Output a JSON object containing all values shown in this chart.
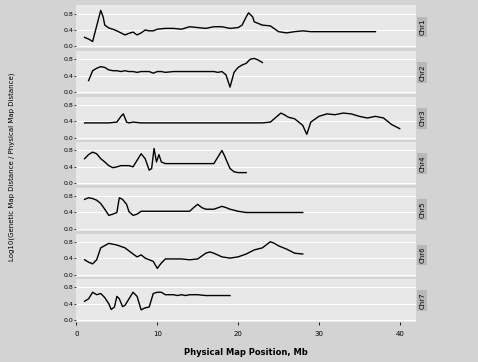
{
  "chromosomes": [
    "Chr1",
    "Chr2",
    "Chr3",
    "Chr4",
    "Chr5",
    "Chr6",
    "Chr7"
  ],
  "xlabel": "Physical Map Position, Mb",
  "ylabel": "Log10(Genetic Map Distance / Physical Map Distance)",
  "xlim": [
    0,
    42
  ],
  "ylim": [
    -0.05,
    1.0
  ],
  "yticks": [
    0.0,
    0.4,
    0.8
  ],
  "xticks": [
    0,
    10,
    20,
    30,
    40
  ],
  "background_color": "#d3d3d3",
  "panel_bg": "#e8e8e8",
  "line_color": "#000000",
  "line_width": 1.0,
  "chr_label_bg": "#b8b8b8",
  "chr1_x": [
    1.0,
    1.5,
    2.0,
    2.5,
    3.0,
    3.3,
    3.5,
    4.0,
    4.5,
    5.0,
    5.5,
    6.0,
    6.5,
    7.0,
    7.5,
    8.0,
    8.5,
    9.0,
    9.5,
    10.0,
    11.0,
    12.0,
    13.0,
    14.0,
    15.0,
    16.0,
    17.0,
    18.0,
    19.0,
    20.0,
    20.5,
    21.0,
    21.3,
    21.8,
    22.0,
    23.0,
    24.0,
    25.0,
    26.0,
    27.0,
    28.0,
    29.0,
    30.0,
    31.0,
    32.0,
    33.0,
    34.0,
    35.0,
    36.0,
    37.0
  ],
  "chr1_y": [
    0.22,
    0.18,
    0.12,
    0.5,
    0.88,
    0.72,
    0.52,
    0.45,
    0.42,
    0.38,
    0.33,
    0.28,
    0.32,
    0.35,
    0.28,
    0.33,
    0.4,
    0.38,
    0.38,
    0.42,
    0.44,
    0.44,
    0.42,
    0.48,
    0.46,
    0.44,
    0.48,
    0.48,
    0.44,
    0.46,
    0.52,
    0.72,
    0.82,
    0.72,
    0.6,
    0.52,
    0.5,
    0.36,
    0.33,
    0.36,
    0.38,
    0.36,
    0.36,
    0.36,
    0.36,
    0.36,
    0.36,
    0.36,
    0.36,
    0.36
  ],
  "chr2_x": [
    1.5,
    2.0,
    2.5,
    3.0,
    3.5,
    4.0,
    4.5,
    5.0,
    5.5,
    6.0,
    6.5,
    7.0,
    7.5,
    8.0,
    8.5,
    9.0,
    9.5,
    10.0,
    10.5,
    11.0,
    12.0,
    13.0,
    14.0,
    15.0,
    16.0,
    17.0,
    17.5,
    18.0,
    18.5,
    19.0,
    19.5,
    20.0,
    20.5,
    21.0,
    21.5,
    22.0,
    22.5,
    23.0
  ],
  "chr2_y": [
    0.28,
    0.52,
    0.58,
    0.62,
    0.6,
    0.54,
    0.52,
    0.52,
    0.5,
    0.52,
    0.5,
    0.5,
    0.48,
    0.5,
    0.5,
    0.5,
    0.46,
    0.5,
    0.5,
    0.48,
    0.5,
    0.5,
    0.5,
    0.5,
    0.5,
    0.5,
    0.48,
    0.5,
    0.42,
    0.12,
    0.48,
    0.6,
    0.66,
    0.7,
    0.8,
    0.82,
    0.78,
    0.72
  ],
  "chr3_x": [
    1.0,
    2.0,
    3.0,
    4.0,
    5.0,
    5.5,
    5.8,
    6.2,
    6.5,
    7.0,
    8.0,
    9.0,
    10.0,
    11.0,
    12.0,
    13.0,
    14.0,
    15.0,
    16.0,
    17.0,
    18.0,
    19.0,
    20.0,
    21.0,
    22.0,
    23.0,
    24.0,
    25.0,
    25.3,
    25.8,
    26.2,
    27.0,
    27.5,
    28.0,
    28.5,
    29.0,
    30.0,
    31.0,
    32.0,
    33.0,
    34.0,
    35.0,
    36.0,
    37.0,
    38.0,
    39.0,
    40.0
  ],
  "chr3_y": [
    0.36,
    0.36,
    0.36,
    0.36,
    0.38,
    0.52,
    0.58,
    0.38,
    0.36,
    0.38,
    0.36,
    0.36,
    0.36,
    0.36,
    0.36,
    0.36,
    0.36,
    0.36,
    0.36,
    0.36,
    0.36,
    0.36,
    0.36,
    0.36,
    0.36,
    0.36,
    0.38,
    0.55,
    0.6,
    0.55,
    0.5,
    0.46,
    0.38,
    0.3,
    0.08,
    0.38,
    0.52,
    0.58,
    0.56,
    0.6,
    0.58,
    0.52,
    0.48,
    0.52,
    0.48,
    0.32,
    0.22
  ],
  "chr4_x": [
    1.0,
    1.5,
    2.0,
    2.5,
    3.0,
    3.5,
    4.0,
    4.5,
    5.0,
    5.5,
    6.0,
    6.5,
    7.0,
    8.0,
    8.5,
    9.0,
    9.3,
    9.6,
    9.9,
    10.2,
    10.5,
    11.0,
    12.0,
    13.0,
    14.0,
    15.0,
    16.0,
    17.0,
    18.0,
    18.3,
    19.0,
    19.5,
    20.0,
    20.5,
    21.0
  ],
  "chr4_y": [
    0.6,
    0.7,
    0.76,
    0.72,
    0.6,
    0.52,
    0.43,
    0.38,
    0.4,
    0.43,
    0.43,
    0.43,
    0.4,
    0.72,
    0.6,
    0.32,
    0.36,
    0.85,
    0.52,
    0.7,
    0.52,
    0.48,
    0.48,
    0.48,
    0.48,
    0.48,
    0.48,
    0.48,
    0.8,
    0.68,
    0.36,
    0.28,
    0.26,
    0.26,
    0.26
  ],
  "chr5_x": [
    1.0,
    1.5,
    2.0,
    2.5,
    3.0,
    3.5,
    4.0,
    4.5,
    5.0,
    5.3,
    5.7,
    6.2,
    6.5,
    7.0,
    7.5,
    8.0,
    8.5,
    9.0,
    9.5,
    10.0,
    11.0,
    12.0,
    13.0,
    14.0,
    14.5,
    15.0,
    15.5,
    16.0,
    17.0,
    18.0,
    18.5,
    19.0,
    20.0,
    21.0,
    22.0,
    23.0,
    24.0,
    25.0,
    26.0,
    27.0,
    28.0
  ],
  "chr5_y": [
    0.72,
    0.76,
    0.74,
    0.7,
    0.62,
    0.48,
    0.33,
    0.36,
    0.4,
    0.76,
    0.72,
    0.6,
    0.42,
    0.33,
    0.36,
    0.43,
    0.43,
    0.43,
    0.43,
    0.43,
    0.43,
    0.43,
    0.43,
    0.43,
    0.52,
    0.6,
    0.52,
    0.48,
    0.48,
    0.55,
    0.52,
    0.48,
    0.43,
    0.4,
    0.4,
    0.4,
    0.4,
    0.4,
    0.4,
    0.4,
    0.4
  ],
  "chr6_x": [
    1.0,
    1.5,
    2.0,
    2.5,
    3.0,
    4.0,
    5.0,
    6.0,
    7.0,
    7.5,
    8.0,
    8.5,
    9.0,
    9.5,
    10.0,
    10.5,
    11.0,
    12.0,
    13.0,
    14.0,
    15.0,
    16.0,
    16.5,
    17.0,
    18.0,
    19.0,
    20.0,
    21.0,
    22.0,
    23.0,
    24.0,
    24.5,
    25.0,
    26.0,
    27.0,
    28.0
  ],
  "chr6_y": [
    0.36,
    0.3,
    0.26,
    0.36,
    0.65,
    0.76,
    0.72,
    0.65,
    0.5,
    0.43,
    0.48,
    0.4,
    0.36,
    0.32,
    0.15,
    0.28,
    0.38,
    0.38,
    0.38,
    0.36,
    0.38,
    0.52,
    0.55,
    0.52,
    0.43,
    0.4,
    0.43,
    0.5,
    0.6,
    0.65,
    0.8,
    0.76,
    0.7,
    0.62,
    0.52,
    0.5
  ],
  "chr7_x": [
    1.0,
    1.5,
    2.0,
    2.5,
    3.0,
    3.5,
    4.0,
    4.3,
    4.7,
    5.0,
    5.3,
    5.7,
    6.0,
    7.0,
    7.5,
    8.0,
    8.5,
    9.0,
    9.5,
    10.0,
    10.5,
    11.0,
    12.0,
    12.5,
    13.0,
    13.5,
    14.0,
    15.0,
    16.0,
    17.0,
    18.0,
    19.0
  ],
  "chr7_y": [
    0.46,
    0.52,
    0.68,
    0.62,
    0.65,
    0.55,
    0.4,
    0.26,
    0.32,
    0.58,
    0.52,
    0.33,
    0.36,
    0.68,
    0.58,
    0.25,
    0.3,
    0.32,
    0.65,
    0.68,
    0.68,
    0.62,
    0.62,
    0.6,
    0.62,
    0.6,
    0.62,
    0.62,
    0.6,
    0.6,
    0.6,
    0.6
  ]
}
